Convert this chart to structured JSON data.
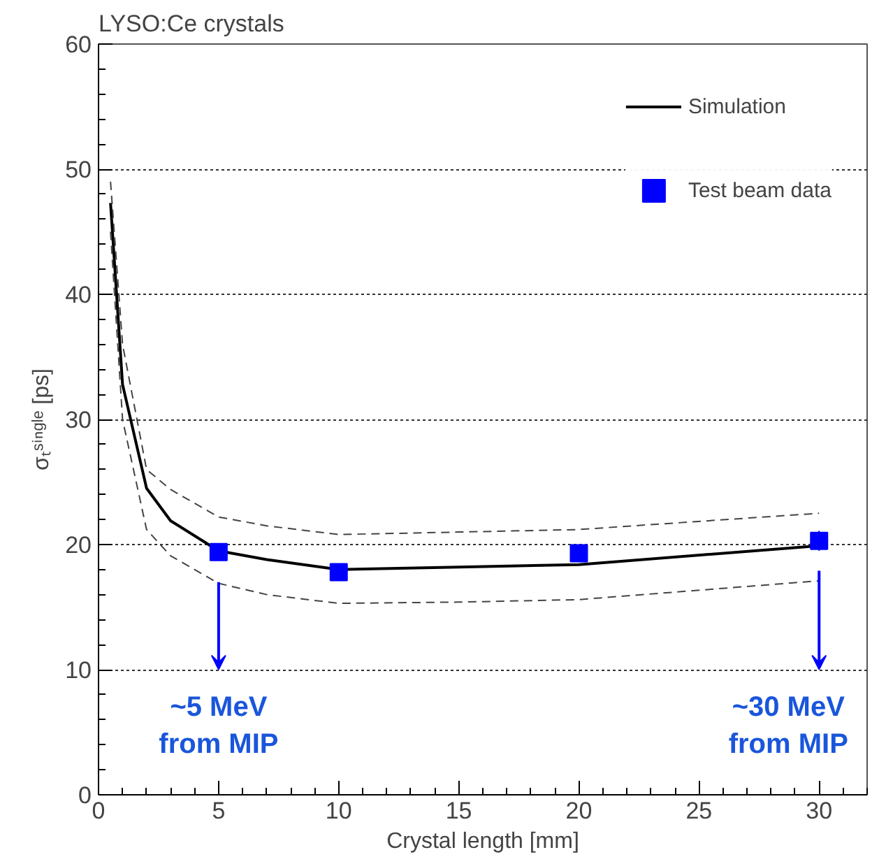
{
  "chart_data": {
    "type": "line",
    "title": "LYSO:Ce crystals",
    "xlabel": "Crystal length [mm]",
    "ylabel": "σₜˢⁱⁿᵍˡᵉ [ps]",
    "series": [
      {
        "name": "Simulation",
        "color": "#000000",
        "x": [
          0.5,
          1,
          2,
          3,
          5,
          7,
          10,
          15,
          20,
          30
        ],
        "values": [
          47.3,
          32.8,
          24.5,
          21.9,
          19.5,
          18.8,
          18.0,
          18.2,
          18.4,
          19.9
        ]
      },
      {
        "color": "#444444",
        "line_style": "dashed",
        "x": [
          0.5,
          1,
          2,
          3,
          5,
          7,
          10,
          15,
          20,
          30
        ],
        "values": [
          45,
          30,
          21.2,
          19.1,
          16.9,
          16.0,
          15.3,
          15.4,
          15.6,
          17.1
        ]
      },
      {
        "color": "#444444",
        "line_style": "dashed",
        "x": [
          0.5,
          1,
          2,
          3,
          5,
          7,
          10,
          15,
          20,
          30
        ],
        "values": [
          49,
          36,
          26,
          24.4,
          22.2,
          21.5,
          20.8,
          21.0,
          21.2,
          22.5
        ]
      },
      {
        "name": "Test beam data",
        "type": "scatter",
        "marker": "square",
        "color": "#0000ff",
        "x": [
          5,
          10,
          20,
          30
        ],
        "values": [
          19.4,
          17.8,
          19.3,
          20.3
        ],
        "errors": [
          null,
          null,
          null,
          0.8
        ]
      }
    ],
    "annotations": [
      "~5 MeV\nfrom MIP",
      "~30 MeV\nfrom MIP"
    ],
    "xlim": [
      0,
      32
    ],
    "ylim": [
      0,
      60
    ],
    "xticks": [
      0,
      5,
      10,
      15,
      20,
      25,
      30
    ],
    "yticks": [
      0,
      10,
      20,
      30,
      40,
      50,
      60
    ],
    "grid": "y",
    "legend": "top right"
  }
}
